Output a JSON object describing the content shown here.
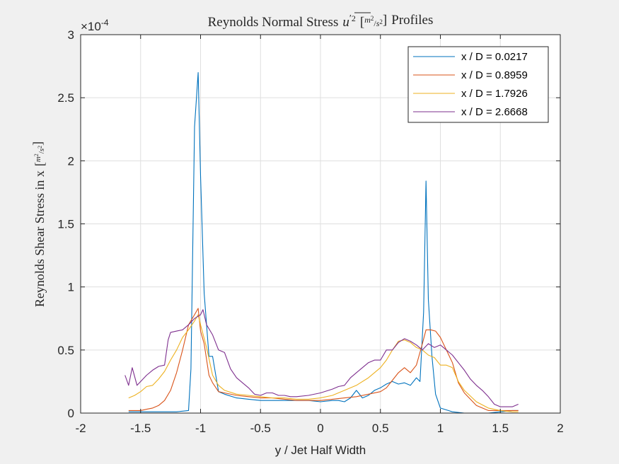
{
  "chart_data": {
    "type": "line",
    "title": "Reynolds Normal Stress u'² [m²/s²] Profiles",
    "title_parts": {
      "prefix": "Reynolds Normal Stress",
      "var": "u",
      "prime": "′",
      "exp": "2",
      "unit_num": "m",
      "unit_den": "s",
      "unit_exp": "2",
      "suffix": "Profiles"
    },
    "xlabel": "y / Jet Half Width",
    "ylabel": "Reynolds Shear Stress in x [m²/s²]",
    "ylabel_parts": {
      "prefix": "Reynolds Shear Stress in x"
    },
    "xlim": [
      -2,
      2
    ],
    "ylim": [
      0,
      3
    ],
    "y_multiplier_label": "×10",
    "y_multiplier_exp": "-4",
    "x_ticks": [
      "-2",
      "-1.5",
      "-1",
      "-0.5",
      "0",
      "0.5",
      "1",
      "1.5",
      "2"
    ],
    "y_ticks": [
      "0",
      "0.5",
      "1",
      "1.5",
      "2",
      "2.5",
      "3"
    ],
    "grid": true,
    "legend_position": "top-right",
    "series": [
      {
        "name": "x / D = 0.0217",
        "color": "#0072BD",
        "x": [
          -1.6,
          -1.5,
          -1.4,
          -1.3,
          -1.2,
          -1.15,
          -1.1,
          -1.08,
          -1.05,
          -1.02,
          -1.0,
          -0.97,
          -0.93,
          -0.9,
          -0.85,
          -0.8,
          -0.7,
          -0.6,
          -0.5,
          -0.4,
          -0.3,
          -0.2,
          -0.1,
          0.0,
          0.1,
          0.15,
          0.2,
          0.25,
          0.3,
          0.35,
          0.4,
          0.45,
          0.5,
          0.55,
          0.6,
          0.65,
          0.7,
          0.75,
          0.8,
          0.83,
          0.86,
          0.88,
          0.9,
          0.93,
          0.96,
          1.0,
          1.1,
          1.2,
          1.3,
          1.4,
          1.5,
          1.6,
          1.65
        ],
        "y": [
          0.01,
          0.01,
          0.01,
          0.01,
          0.01,
          0.015,
          0.02,
          0.35,
          2.27,
          2.7,
          1.88,
          0.95,
          0.45,
          0.45,
          0.17,
          0.15,
          0.12,
          0.11,
          0.1,
          0.1,
          0.1,
          0.1,
          0.1,
          0.09,
          0.1,
          0.1,
          0.09,
          0.12,
          0.18,
          0.12,
          0.14,
          0.18,
          0.2,
          0.23,
          0.25,
          0.23,
          0.24,
          0.22,
          0.28,
          0.25,
          0.8,
          1.84,
          0.9,
          0.45,
          0.15,
          0.04,
          0.01,
          0.0,
          0.0,
          0.0,
          0.01,
          0.02,
          0.02
        ]
      },
      {
        "name": "x / D = 0.8959",
        "color": "#D95319",
        "x": [
          -1.6,
          -1.55,
          -1.5,
          -1.45,
          -1.4,
          -1.35,
          -1.3,
          -1.25,
          -1.2,
          -1.15,
          -1.1,
          -1.05,
          -1.02,
          -1.0,
          -0.97,
          -0.93,
          -0.9,
          -0.85,
          -0.8,
          -0.7,
          -0.6,
          -0.5,
          -0.4,
          -0.3,
          -0.2,
          -0.1,
          0.0,
          0.1,
          0.2,
          0.3,
          0.4,
          0.5,
          0.55,
          0.6,
          0.65,
          0.7,
          0.75,
          0.8,
          0.85,
          0.88,
          0.92,
          0.96,
          1.0,
          1.05,
          1.1,
          1.15,
          1.2,
          1.3,
          1.4,
          1.5,
          1.6,
          1.65
        ],
        "y": [
          0.02,
          0.02,
          0.02,
          0.03,
          0.04,
          0.06,
          0.1,
          0.18,
          0.32,
          0.5,
          0.7,
          0.78,
          0.83,
          0.65,
          0.55,
          0.3,
          0.24,
          0.17,
          0.16,
          0.14,
          0.13,
          0.12,
          0.12,
          0.11,
          0.1,
          0.1,
          0.1,
          0.11,
          0.12,
          0.13,
          0.15,
          0.17,
          0.2,
          0.26,
          0.32,
          0.36,
          0.32,
          0.38,
          0.55,
          0.66,
          0.66,
          0.65,
          0.6,
          0.5,
          0.4,
          0.24,
          0.16,
          0.06,
          0.02,
          0.02,
          0.02,
          0.02
        ]
      },
      {
        "name": "x / D = 1.7926",
        "color": "#EDB120",
        "x": [
          -1.6,
          -1.55,
          -1.5,
          -1.45,
          -1.4,
          -1.35,
          -1.3,
          -1.25,
          -1.2,
          -1.15,
          -1.1,
          -1.05,
          -1.02,
          -1.0,
          -0.95,
          -0.9,
          -0.85,
          -0.8,
          -0.7,
          -0.6,
          -0.5,
          -0.4,
          -0.3,
          -0.2,
          -0.1,
          0.0,
          0.1,
          0.2,
          0.3,
          0.4,
          0.5,
          0.55,
          0.6,
          0.65,
          0.7,
          0.75,
          0.8,
          0.85,
          0.9,
          0.95,
          1.0,
          1.05,
          1.1,
          1.15,
          1.2,
          1.3,
          1.4,
          1.5,
          1.6,
          1.65
        ],
        "y": [
          0.12,
          0.14,
          0.17,
          0.21,
          0.22,
          0.27,
          0.33,
          0.42,
          0.5,
          0.6,
          0.66,
          0.73,
          0.78,
          0.7,
          0.52,
          0.3,
          0.22,
          0.18,
          0.15,
          0.14,
          0.13,
          0.12,
          0.12,
          0.11,
          0.11,
          0.12,
          0.14,
          0.18,
          0.22,
          0.28,
          0.36,
          0.42,
          0.5,
          0.57,
          0.58,
          0.56,
          0.52,
          0.5,
          0.46,
          0.44,
          0.38,
          0.38,
          0.36,
          0.25,
          0.18,
          0.09,
          0.04,
          0.02,
          0.01,
          0.01
        ]
      },
      {
        "name": "x / D = 2.6668",
        "color": "#7E2F8E",
        "x": [
          -1.63,
          -1.6,
          -1.57,
          -1.53,
          -1.5,
          -1.45,
          -1.4,
          -1.35,
          -1.3,
          -1.27,
          -1.25,
          -1.2,
          -1.15,
          -1.1,
          -1.05,
          -1.0,
          -0.98,
          -0.95,
          -0.9,
          -0.85,
          -0.8,
          -0.75,
          -0.7,
          -0.65,
          -0.6,
          -0.55,
          -0.5,
          -0.45,
          -0.4,
          -0.35,
          -0.3,
          -0.25,
          -0.2,
          -0.1,
          0.0,
          0.1,
          0.15,
          0.2,
          0.25,
          0.3,
          0.35,
          0.4,
          0.45,
          0.5,
          0.55,
          0.6,
          0.65,
          0.7,
          0.75,
          0.8,
          0.85,
          0.9,
          0.95,
          1.0,
          1.05,
          1.1,
          1.15,
          1.2,
          1.25,
          1.3,
          1.35,
          1.4,
          1.45,
          1.5,
          1.55,
          1.6,
          1.65
        ],
        "y": [
          0.3,
          0.22,
          0.36,
          0.22,
          0.25,
          0.3,
          0.34,
          0.37,
          0.38,
          0.58,
          0.64,
          0.65,
          0.66,
          0.7,
          0.75,
          0.78,
          0.82,
          0.7,
          0.62,
          0.5,
          0.48,
          0.35,
          0.28,
          0.24,
          0.2,
          0.15,
          0.14,
          0.16,
          0.16,
          0.14,
          0.14,
          0.13,
          0.13,
          0.14,
          0.16,
          0.19,
          0.21,
          0.22,
          0.28,
          0.32,
          0.36,
          0.4,
          0.42,
          0.42,
          0.5,
          0.5,
          0.56,
          0.59,
          0.57,
          0.54,
          0.5,
          0.55,
          0.52,
          0.54,
          0.5,
          0.46,
          0.4,
          0.34,
          0.27,
          0.22,
          0.18,
          0.13,
          0.07,
          0.05,
          0.05,
          0.05,
          0.07
        ]
      }
    ]
  }
}
